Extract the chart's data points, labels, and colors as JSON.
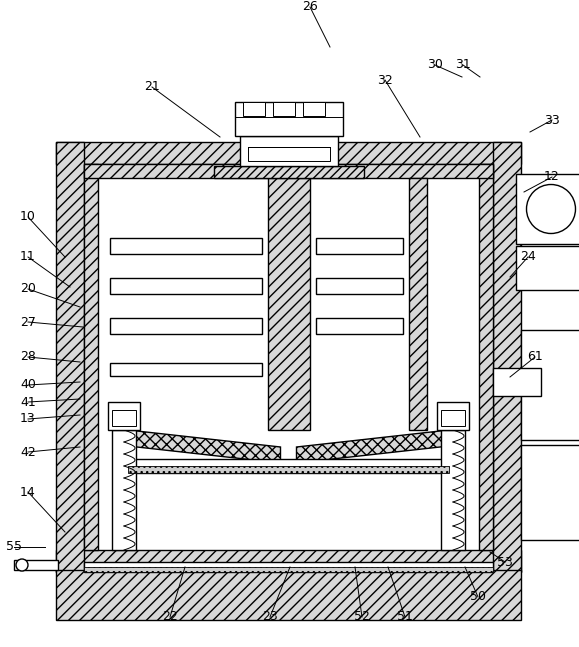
{
  "bg_color": "#ffffff",
  "lc": "#000000",
  "lw": 1.0,
  "hatch_fc": "#d8d8d8",
  "figsize": [
    5.79,
    6.47
  ],
  "dpi": 100
}
